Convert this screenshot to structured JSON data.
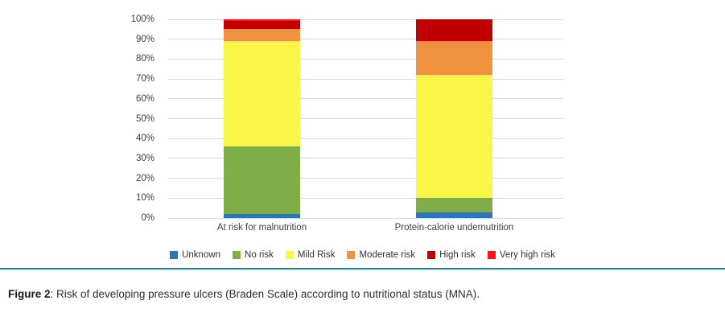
{
  "chart_data": {
    "type": "bar",
    "stacked": true,
    "orientation": "vertical",
    "categories": [
      "At risk for malnutrition",
      "Protein-calorie undernutrition"
    ],
    "series": [
      {
        "name": "Unknown",
        "color": "#2e75b6",
        "values": [
          2,
          3
        ]
      },
      {
        "name": "No risk",
        "color": "#7fae49",
        "values": [
          34,
          7
        ]
      },
      {
        "name": "Mild Risk",
        "color": "#faf648",
        "values": [
          53,
          62
        ]
      },
      {
        "name": "Moderate risk",
        "color": "#f0913d",
        "values": [
          6,
          17
        ]
      },
      {
        "name": "High risk",
        "color": "#c00000",
        "values": [
          4,
          11
        ]
      },
      {
        "name": "Very high risk",
        "color": "#ff1414",
        "values": [
          1,
          0
        ]
      }
    ],
    "title": "",
    "xlabel": "",
    "ylabel": "",
    "ylim": [
      0,
      100
    ],
    "ytick_step": 10,
    "ytick_suffix": "%",
    "grid": true,
    "legend_position": "bottom"
  },
  "caption": {
    "label": "Figure 2",
    "separator": ":  ",
    "text": "Risk of developing pressure ulcers (Braden Scale) according to nutritional status (MNA)."
  },
  "colors": {
    "gridline": "#d9d9d9",
    "axis_text": "#404040",
    "divider": "#1a8290",
    "background": "#ffffff"
  }
}
